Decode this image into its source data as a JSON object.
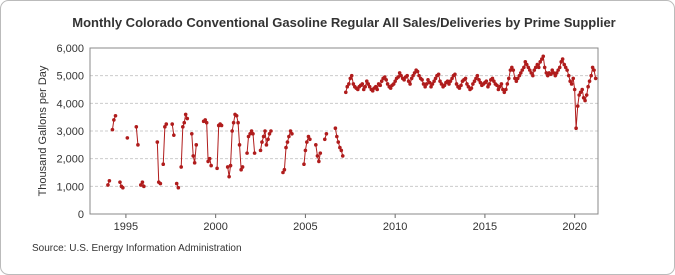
{
  "chart_data": {
    "type": "line",
    "title": "Monthly Colorado Conventional Gasoline Regular All Sales/Deliveries by Prime Supplier",
    "y_label": "Thousand Gallons per Day",
    "source": "Source: U.S. Energy Information Administration",
    "x": [
      1994.0,
      1994.08,
      1994.17,
      1994.25,
      1994.33,
      1994.42,
      1994.5,
      1994.67,
      1994.75,
      1994.83,
      1994.92,
      1995.08,
      1995.17,
      1995.58,
      1995.67,
      1995.75,
      1995.83,
      1995.92,
      1996.0,
      1996.08,
      1996.75,
      1996.83,
      1996.92,
      1997.0,
      1997.08,
      1997.17,
      1997.25,
      1997.33,
      1997.58,
      1997.67,
      1997.75,
      1997.83,
      1997.92,
      1998.0,
      1998.08,
      1998.17,
      1998.25,
      1998.33,
      1998.42,
      1998.5,
      1998.67,
      1998.75,
      1998.83,
      1998.92,
      1999.0,
      1999.33,
      1999.42,
      1999.5,
      1999.58,
      1999.67,
      1999.75,
      1999.83,
      2000.08,
      2000.17,
      2000.25,
      2000.33,
      2000.42,
      2000.67,
      2000.75,
      2000.83,
      2000.92,
      2001.0,
      2001.08,
      2001.17,
      2001.25,
      2001.33,
      2001.42,
      2001.5,
      2001.58,
      2001.75,
      2001.83,
      2001.92,
      2002.0,
      2002.08,
      2002.17,
      2002.25,
      2002.5,
      2002.58,
      2002.67,
      2002.75,
      2002.83,
      2002.92,
      2003.0,
      2003.08,
      2003.17,
      2003.75,
      2003.83,
      2003.92,
      2004.0,
      2004.08,
      2004.17,
      2004.25,
      2004.33,
      2004.92,
      2005.0,
      2005.08,
      2005.17,
      2005.25,
      2005.33,
      2005.58,
      2005.67,
      2005.75,
      2005.83,
      2005.92,
      2006.08,
      2006.17,
      2006.25,
      2006.67,
      2006.75,
      2006.83,
      2006.92,
      2007.0,
      2007.08,
      2007.17,
      2007.25,
      2007.33,
      2007.42,
      2007.5,
      2007.58,
      2007.67,
      2007.75,
      2007.83,
      2007.92,
      2008.0,
      2008.08,
      2008.17,
      2008.25,
      2008.33,
      2008.42,
      2008.5,
      2008.58,
      2008.67,
      2008.75,
      2008.83,
      2008.92,
      2009.0,
      2009.08,
      2009.17,
      2009.25,
      2009.33,
      2009.42,
      2009.5,
      2009.58,
      2009.67,
      2009.75,
      2009.83,
      2009.92,
      2010.0,
      2010.08,
      2010.17,
      2010.25,
      2010.33,
      2010.42,
      2010.5,
      2010.58,
      2010.67,
      2010.75,
      2010.83,
      2010.92,
      2011.0,
      2011.08,
      2011.17,
      2011.25,
      2011.33,
      2011.42,
      2011.5,
      2011.58,
      2011.67,
      2011.75,
      2011.83,
      2011.92,
      2012.0,
      2012.08,
      2012.17,
      2012.25,
      2012.33,
      2012.42,
      2012.5,
      2012.58,
      2012.67,
      2012.75,
      2012.83,
      2012.92,
      2013.0,
      2013.08,
      2013.17,
      2013.25,
      2013.33,
      2013.42,
      2013.5,
      2013.58,
      2013.67,
      2013.75,
      2013.83,
      2013.92,
      2014.0,
      2014.08,
      2014.17,
      2014.25,
      2014.33,
      2014.42,
      2014.5,
      2014.58,
      2014.67,
      2014.75,
      2014.83,
      2014.92,
      2015.0,
      2015.08,
      2015.17,
      2015.25,
      2015.33,
      2015.42,
      2015.5,
      2015.58,
      2015.67,
      2015.75,
      2015.83,
      2015.92,
      2016.0,
      2016.08,
      2016.17,
      2016.25,
      2016.33,
      2016.42,
      2016.5,
      2016.58,
      2016.67,
      2016.75,
      2016.83,
      2016.92,
      2017.0,
      2017.08,
      2017.17,
      2017.25,
      2017.33,
      2017.42,
      2017.5,
      2017.58,
      2017.67,
      2017.75,
      2017.83,
      2017.92,
      2018.0,
      2018.08,
      2018.17,
      2018.25,
      2018.33,
      2018.42,
      2018.5,
      2018.58,
      2018.67,
      2018.75,
      2018.83,
      2018.92,
      2019.0,
      2019.08,
      2019.17,
      2019.25,
      2019.33,
      2019.42,
      2019.5,
      2019.58,
      2019.67,
      2019.75,
      2019.83,
      2019.92,
      2020.0,
      2020.08,
      2020.17,
      2020.25,
      2020.33,
      2020.42,
      2020.5,
      2020.58,
      2020.67,
      2020.75,
      2020.83,
      2020.92,
      2021.0,
      2021.08,
      2021.17
    ],
    "series": [
      {
        "color": "#b01c1c",
        "values": [
          1050,
          1200,
          null,
          3050,
          3400,
          3550,
          null,
          1150,
          1000,
          950,
          null,
          2750,
          null,
          3150,
          2500,
          null,
          1050,
          1150,
          1000,
          null,
          2600,
          1150,
          1100,
          null,
          1800,
          3150,
          3250,
          null,
          3250,
          2850,
          null,
          1100,
          950,
          null,
          1700,
          3150,
          3300,
          3600,
          3450,
          null,
          2900,
          2100,
          1850,
          2500,
          null,
          3350,
          3400,
          3300,
          1900,
          2000,
          1750,
          null,
          1650,
          3200,
          3250,
          3200,
          null,
          1700,
          1350,
          1750,
          3000,
          3300,
          3600,
          3550,
          3300,
          2500,
          1600,
          1700,
          null,
          2200,
          2800,
          2900,
          3000,
          2900,
          2200,
          null,
          2300,
          2600,
          2800,
          3000,
          2500,
          2700,
          2900,
          3000,
          null,
          1500,
          1600,
          2400,
          2600,
          2800,
          3000,
          2900,
          null,
          1800,
          2300,
          2600,
          2800,
          2700,
          null,
          2500,
          2100,
          1900,
          2200,
          null,
          2700,
          2900,
          null,
          3100,
          2800,
          2600,
          2400,
          2300,
          2100,
          null,
          4400,
          4600,
          4700,
          4900,
          5000,
          4700,
          4600,
          4550,
          4500,
          4600,
          4650,
          4700,
          4500,
          4600,
          4800,
          4700,
          4600,
          4500,
          4450,
          4550,
          4600,
          4500,
          4700,
          4650,
          4800,
          4900,
          4950,
          4850,
          4700,
          4600,
          4550,
          4650,
          4700,
          4800,
          4900,
          4950,
          5100,
          5000,
          4900,
          4850,
          4950,
          5000,
          4800,
          4700,
          4900,
          5000,
          5100,
          5200,
          5150,
          5000,
          4900,
          4850,
          4700,
          4600,
          4700,
          4850,
          4750,
          4600,
          4700,
          4800,
          4900,
          5000,
          5050,
          4800,
          4700,
          4600,
          4650,
          4750,
          4800,
          4700,
          4800,
          4900,
          5000,
          5050,
          4700,
          4600,
          4550,
          4650,
          4800,
          4850,
          4900,
          4700,
          4600,
          4500,
          4550,
          4700,
          4800,
          4900,
          5000,
          4850,
          4750,
          4650,
          4700,
          4750,
          4800,
          4600,
          4700,
          4850,
          4900,
          4800,
          4700,
          4650,
          4500,
          4600,
          4700,
          4500,
          4400,
          4500,
          4700,
          4900,
          5200,
          5300,
          5200,
          4900,
          4800,
          4900,
          5000,
          5100,
          5200,
          5300,
          5500,
          5400,
          5300,
          5200,
          5100,
          5000,
          5200,
          5300,
          5400,
          5300,
          5500,
          5600,
          5700,
          5300,
          5100,
          5000,
          5100,
          5050,
          5200,
          5100,
          5000,
          5100,
          5200,
          5300,
          5500,
          5600,
          5400,
          5300,
          5200,
          5000,
          4800,
          4700,
          4900,
          4500,
          3100,
          3900,
          4300,
          4400,
          4500,
          4200,
          4100,
          4300,
          4600,
          4800,
          5000,
          5300,
          5200,
          4900
        ]
      }
    ],
    "xlim": [
      1993,
      2021.3
    ],
    "xticks": [
      1995,
      2000,
      2005,
      2010,
      2015,
      2020
    ],
    "ylim": [
      0,
      6000
    ],
    "yticks": [
      0,
      {
        "value": 1000,
        "label": "1,000"
      },
      {
        "value": 2000,
        "label": "2,000"
      },
      {
        "value": 3000,
        "label": "3,000"
      },
      {
        "value": 4000,
        "label": "4,000"
      },
      {
        "value": 5000,
        "label": "5,000"
      },
      {
        "value": 6000,
        "label": "6,000"
      }
    ],
    "grid": true
  }
}
